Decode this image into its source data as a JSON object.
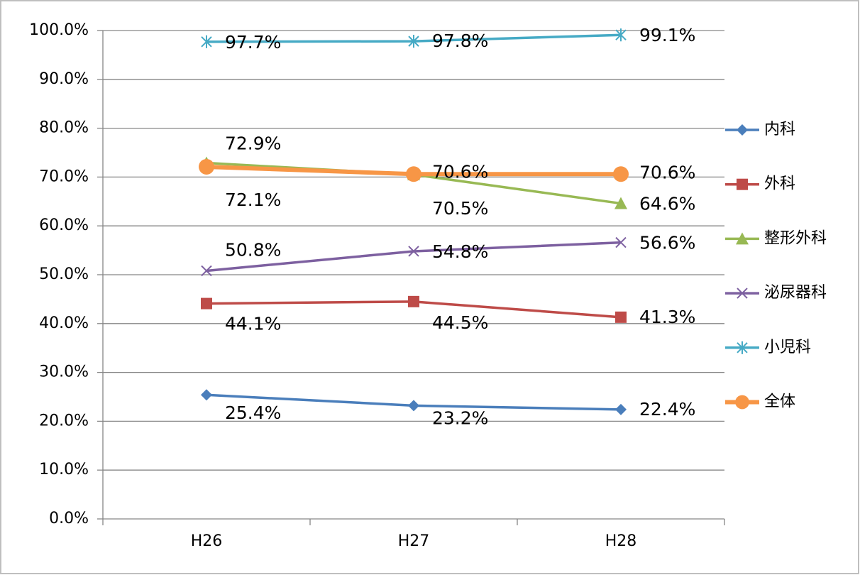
{
  "chart_data": {
    "type": "line",
    "categories": [
      "H26",
      "H27",
      "H28"
    ],
    "series": [
      {
        "name": "内科",
        "color": "#4a7ebb",
        "marker": "diamond",
        "values": [
          25.4,
          23.2,
          22.4
        ],
        "value_labels": [
          "25.4%",
          "23.2%",
          "22.4%"
        ]
      },
      {
        "name": "外科",
        "color": "#be4b48",
        "marker": "square",
        "values": [
          44.1,
          44.5,
          41.3
        ],
        "value_labels": [
          "44.1%",
          "44.5%",
          "41.3%"
        ]
      },
      {
        "name": "整形外科",
        "color": "#98b954",
        "marker": "triangle",
        "values": [
          72.9,
          70.5,
          64.6
        ],
        "value_labels": [
          "72.9%",
          "70.5%",
          "64.6%"
        ]
      },
      {
        "name": "泌尿器科",
        "color": "#7d60a0",
        "marker": "x",
        "values": [
          50.8,
          54.8,
          56.6
        ],
        "value_labels": [
          "50.8%",
          "54.8%",
          "56.6%"
        ]
      },
      {
        "name": "小児科",
        "color": "#46aac5",
        "marker": "star",
        "values": [
          97.7,
          97.8,
          99.1
        ],
        "value_labels": [
          "97.7%",
          "97.8%",
          "99.1%"
        ]
      },
      {
        "name": "全体",
        "color": "#f79646",
        "marker": "circle",
        "values": [
          72.1,
          70.6,
          70.6
        ],
        "value_labels": [
          "72.1%",
          "70.6%",
          "70.6%"
        ]
      }
    ],
    "ylim": [
      0,
      100
    ],
    "yticks": [
      {
        "value": 0,
        "label": "0.0%"
      },
      {
        "value": 10,
        "label": "10.0%"
      },
      {
        "value": 20,
        "label": "20.0%"
      },
      {
        "value": 30,
        "label": "30.0%"
      },
      {
        "value": 40,
        "label": "40.0%"
      },
      {
        "value": 50,
        "label": "50.0%"
      },
      {
        "value": 60,
        "label": "60.0%"
      },
      {
        "value": 70,
        "label": "70.0%"
      },
      {
        "value": 80,
        "label": "80.0%"
      },
      {
        "value": 90,
        "label": "90.0%"
      },
      {
        "value": 100,
        "label": "100.0%"
      }
    ],
    "grid": true,
    "legend": "right"
  }
}
